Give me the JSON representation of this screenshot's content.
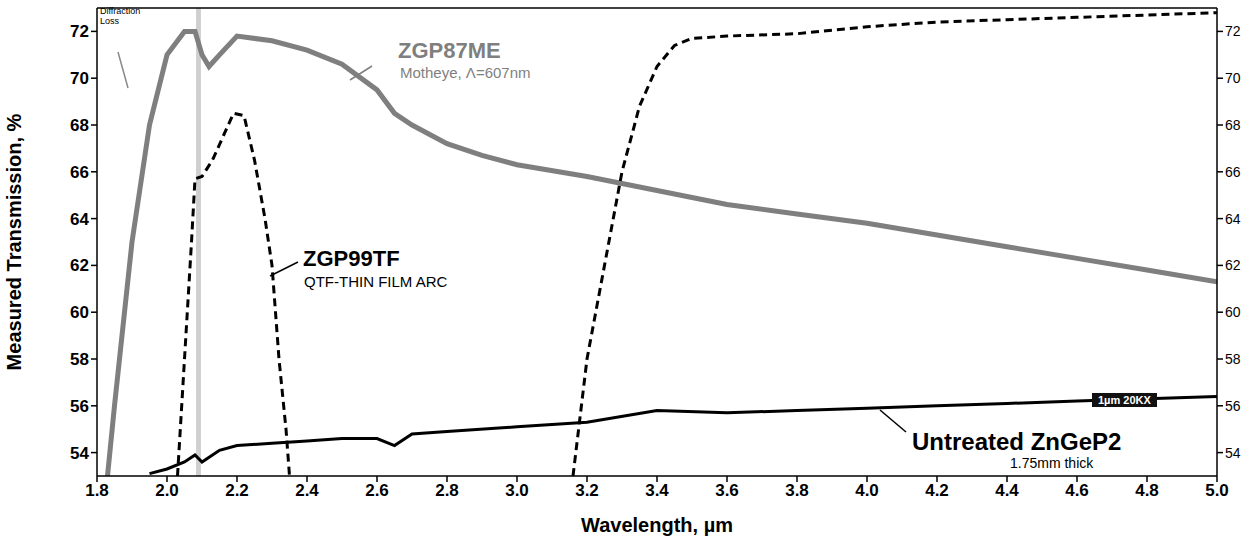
{
  "chart_data": {
    "type": "line",
    "x_label": "Wavelength, µm",
    "y_label": "Measured Transmission, %",
    "xlim": [
      1.8,
      5.0
    ],
    "xticks": [
      1.8,
      {
        "value": 2.0,
        "label": "2.0"
      },
      2.2,
      2.4,
      2.6,
      2.8,
      {
        "value": 3.0,
        "label": "3.0"
      },
      3.2,
      3.4,
      3.6,
      3.8,
      {
        "value": 4.0,
        "label": "4.0"
      },
      4.2,
      4.4,
      4.6,
      4.8,
      {
        "value": 5.0,
        "label": "5.0"
      }
    ],
    "ylim": [
      53,
      73
    ],
    "yticks": [
      54,
      56,
      58,
      60,
      62,
      64,
      66,
      68,
      70,
      72
    ],
    "y2lim": [
      53,
      73
    ],
    "y2ticks": [
      54,
      56,
      58,
      60,
      62,
      64,
      66,
      68,
      70,
      72
    ],
    "grid": false,
    "highlight_x": [
      2.083,
      2.097
    ],
    "series": [
      {
        "name": "ZGP87ME",
        "color": "#7f7f7f",
        "line_style": "solid",
        "x": [
          1.83,
          1.85,
          1.9,
          1.95,
          2.0,
          2.05,
          2.08,
          2.1,
          2.12,
          2.15,
          2.2,
          2.3,
          2.4,
          2.5,
          2.6,
          2.65,
          2.7,
          2.8,
          2.9,
          3.0,
          3.2,
          3.4,
          3.6,
          3.8,
          4.0,
          4.2,
          4.4,
          4.6,
          4.8,
          5.0
        ],
        "values": [
          53,
          56,
          63,
          68,
          71,
          72,
          72,
          71,
          70.5,
          71,
          71.8,
          71.6,
          71.2,
          70.6,
          69.5,
          68.5,
          68,
          67.2,
          66.7,
          66.3,
          65.8,
          65.2,
          64.6,
          64.2,
          63.8,
          63.3,
          62.8,
          62.3,
          61.8,
          61.3
        ]
      },
      {
        "name": "ZGP99TF",
        "color": "#000000",
        "line_style": "dashed",
        "x": [
          2.03,
          2.05,
          2.07,
          2.08,
          2.1,
          2.13,
          2.16,
          2.19,
          2.22,
          2.25,
          2.28,
          2.3,
          2.32,
          2.34,
          2.35,
          2.8,
          3.16,
          3.2,
          3.25,
          3.3,
          3.35,
          3.4,
          3.45,
          3.5,
          3.6,
          3.8,
          4.0,
          4.2,
          4.4,
          4.6,
          4.8,
          5.0
        ],
        "values": [
          53,
          58,
          63,
          65.7,
          65.8,
          66.5,
          67.5,
          68.5,
          68.4,
          66.5,
          64,
          62,
          58,
          55,
          53,
          null,
          53,
          58,
          62,
          66,
          68.8,
          70.5,
          71.4,
          71.7,
          71.8,
          71.9,
          72.2,
          72.4,
          72.5,
          72.6,
          72.7,
          72.8
        ]
      },
      {
        "name": "Untreated ZnGeP2",
        "color": "#000000",
        "line_style": "solid",
        "axis": "y2",
        "x": [
          1.95,
          2.0,
          2.05,
          2.08,
          2.1,
          2.15,
          2.2,
          2.3,
          2.4,
          2.5,
          2.6,
          2.65,
          2.7,
          2.8,
          3.0,
          3.2,
          3.4,
          3.6,
          3.8,
          4.0,
          4.2,
          4.4,
          4.6,
          4.8,
          5.0
        ],
        "values": [
          53.1,
          53.3,
          53.6,
          53.9,
          53.6,
          54.1,
          54.3,
          54.4,
          54.5,
          54.6,
          54.6,
          54.3,
          54.8,
          54.9,
          55.1,
          55.3,
          55.8,
          55.7,
          55.8,
          55.9,
          56.0,
          56.1,
          56.2,
          56.3,
          56.4
        ]
      }
    ],
    "annotations": [
      "Diffraction Loss",
      "ZGP87ME",
      "Motheye, Λ=607nm",
      "ZGP99TF",
      "QTF-THIN FILM ARC",
      "Untreated ZnGeP2",
      "1.75mm thick",
      "1µm 20KX"
    ]
  }
}
